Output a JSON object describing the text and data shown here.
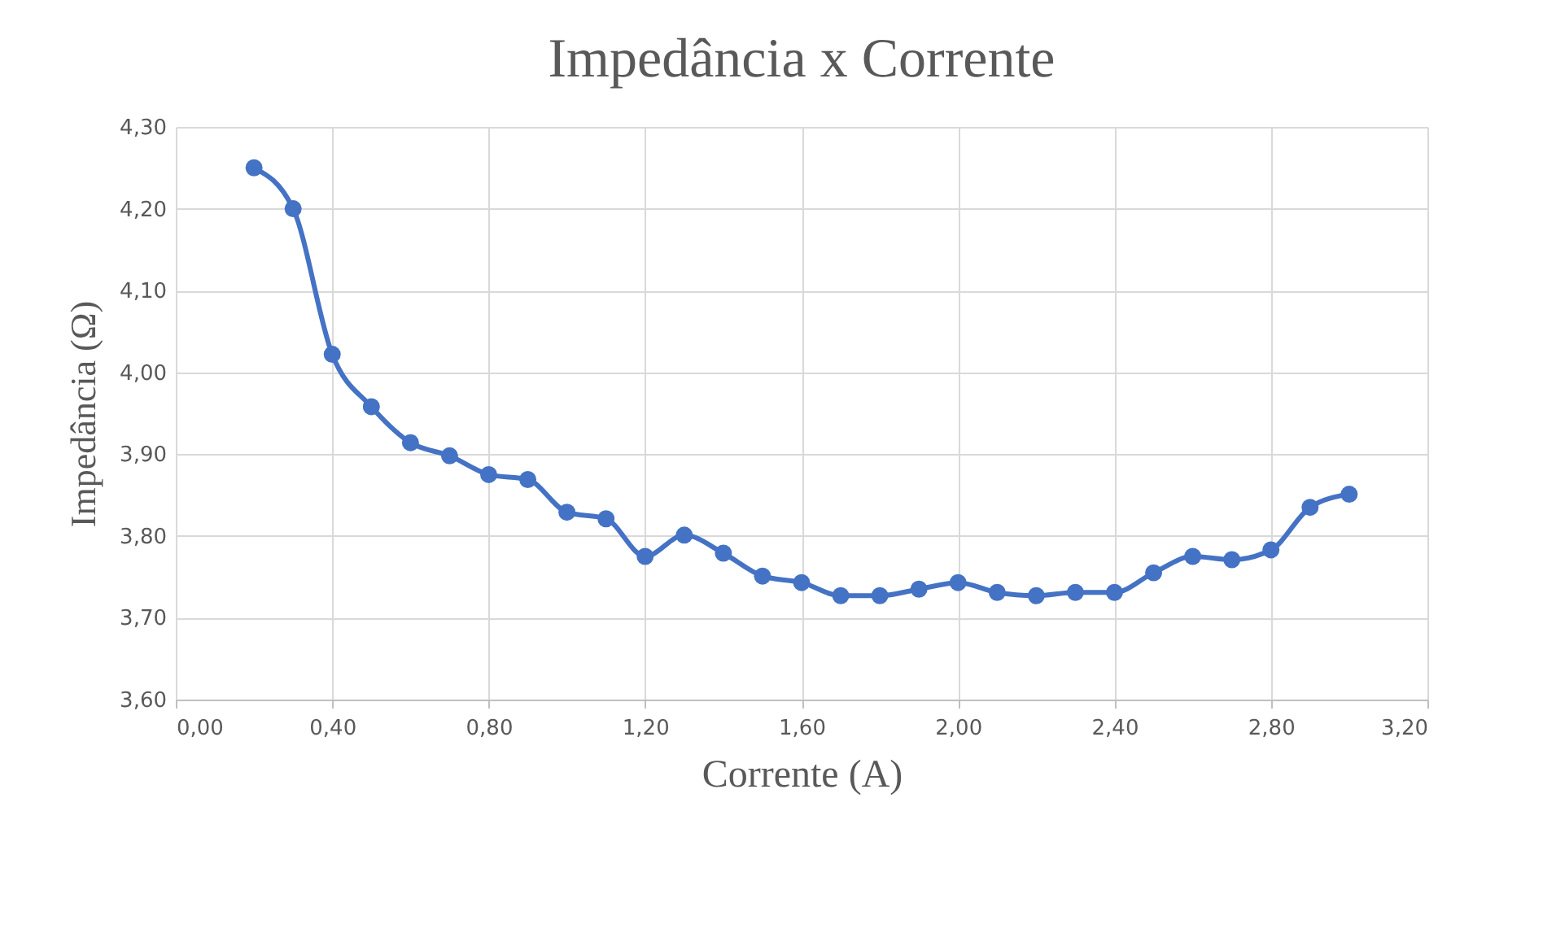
{
  "chart_data": {
    "type": "line",
    "title": "Impedância  x Corrente",
    "xlabel": "Corrente (A)",
    "ylabel": "Impedância  (Ω)",
    "x": [
      0.2,
      0.3,
      0.4,
      0.5,
      0.6,
      0.7,
      0.8,
      0.9,
      1.0,
      1.1,
      1.2,
      1.3,
      1.4,
      1.5,
      1.6,
      1.7,
      1.8,
      1.9,
      2.0,
      2.1,
      2.2,
      2.3,
      2.4,
      2.5,
      2.6,
      2.7,
      2.8,
      2.9,
      3.0
    ],
    "series": [
      {
        "color": "#4472c4",
        "values": [
          4.25,
          4.2,
          4.022,
          3.958,
          3.914,
          3.898,
          3.875,
          3.869,
          3.829,
          3.821,
          3.775,
          3.801,
          3.779,
          3.751,
          3.743,
          3.727,
          3.727,
          3.735,
          3.743,
          3.731,
          3.727,
          3.731,
          3.731,
          3.755,
          3.775,
          3.771,
          3.783,
          3.835,
          3.851
        ]
      }
    ],
    "xlim": [
      0,
      3.2
    ],
    "ylim": [
      3.6,
      4.3
    ],
    "xticks": [
      {
        "value": 0,
        "label": "0,00"
      },
      {
        "value": 0.4,
        "label": "0,40"
      },
      {
        "value": 0.8,
        "label": "0,80"
      },
      {
        "value": 1.2,
        "label": "1,20"
      },
      {
        "value": 1.6,
        "label": "1,60"
      },
      {
        "value": 2.0,
        "label": "2,00"
      },
      {
        "value": 2.4,
        "label": "2,40"
      },
      {
        "value": 2.8,
        "label": "2,80"
      },
      {
        "value": 3.2,
        "label": "3,20"
      }
    ],
    "yticks": [
      {
        "value": 3.6,
        "label": "3,60"
      },
      {
        "value": 3.7,
        "label": "3,70"
      },
      {
        "value": 3.8,
        "label": "3,80"
      },
      {
        "value": 3.9,
        "label": "3,90"
      },
      {
        "value": 4.0,
        "label": "4,00"
      },
      {
        "value": 4.1,
        "label": "4,10"
      },
      {
        "value": 4.2,
        "label": "4,20"
      },
      {
        "value": 4.3,
        "label": "4,30"
      }
    ],
    "grid": true,
    "marker": "circle",
    "line_style": "solid"
  }
}
